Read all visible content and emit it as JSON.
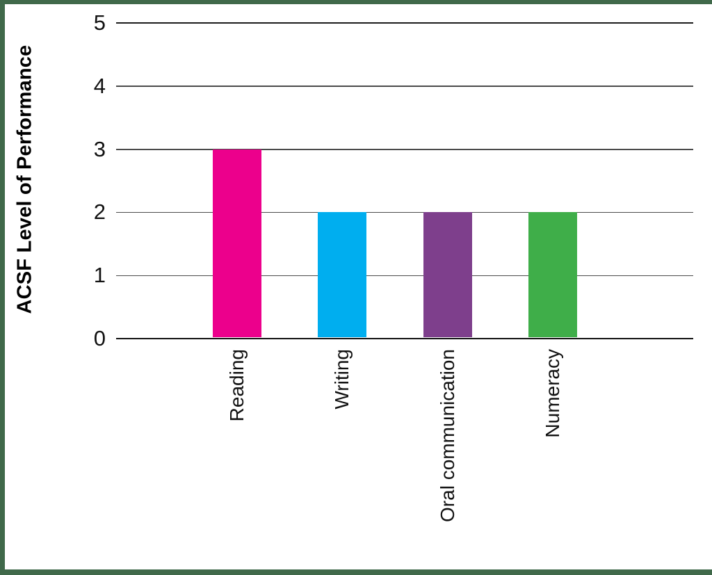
{
  "frame": {
    "border_color": "#40694A"
  },
  "chart_data": {
    "type": "bar",
    "title": "",
    "categories": [
      "Reading",
      "Writing",
      "Oral communication",
      "Numeracy"
    ],
    "values": [
      3,
      2,
      2,
      2
    ],
    "bar_colors": [
      "#EC008C",
      "#00AEEF",
      "#7E3F8C",
      "#3FAE49"
    ],
    "xlabel": "",
    "ylabel": "ACSF Level of Performance",
    "ylim": [
      0,
      5
    ],
    "yticks": [
      0,
      1,
      2,
      3,
      4,
      5
    ],
    "grid": true,
    "legend": false,
    "gridline_color": "#4a4a4a",
    "text_color": "#111111"
  }
}
